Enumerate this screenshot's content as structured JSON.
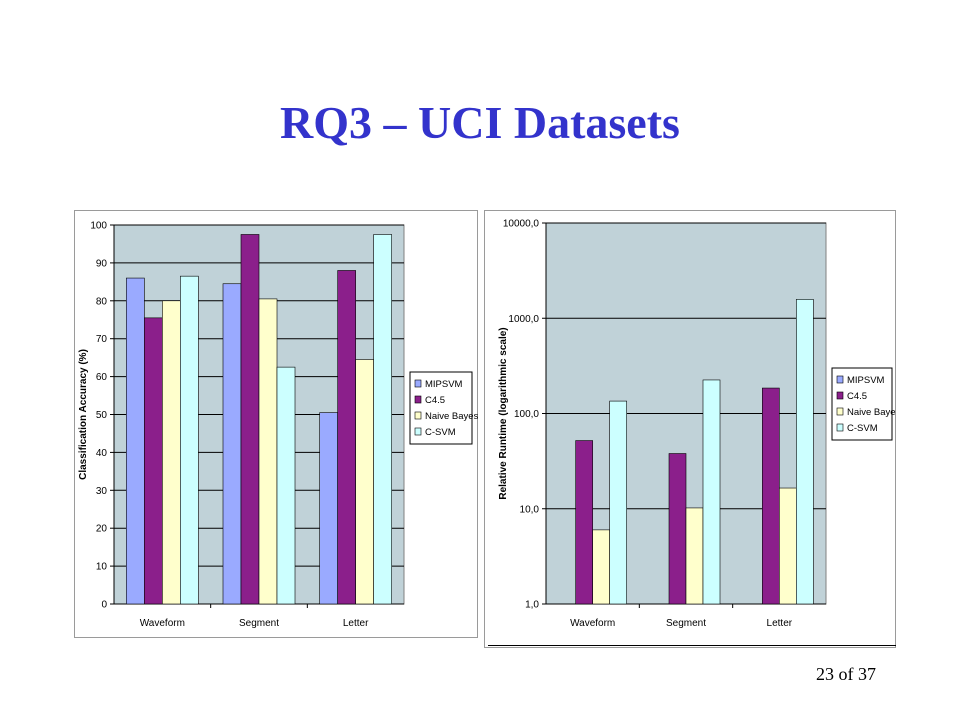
{
  "slide": {
    "title": "RQ3 – UCI Datasets",
    "page_number": "23 of 37"
  },
  "chart_data": [
    {
      "type": "bar",
      "categories": [
        "Waveform",
        "Segment",
        "Letter"
      ],
      "series": [
        {
          "name": "MIPSVM",
          "color": "#9aaaff",
          "values": [
            86,
            84.5,
            50.5
          ]
        },
        {
          "name": "C4.5",
          "color": "#8b1f8b",
          "values": [
            75.5,
            97.5,
            88
          ]
        },
        {
          "name": "Naive Bayes",
          "color": "#ffffcc",
          "values": [
            80,
            80.5,
            64.5
          ]
        },
        {
          "name": "C-SVM",
          "color": "#ccffff",
          "values": [
            86.5,
            62.5,
            97.5
          ]
        }
      ],
      "ylim": [
        0,
        100
      ],
      "yticks": [
        0,
        10,
        20,
        30,
        40,
        50,
        60,
        70,
        80,
        90,
        100
      ],
      "ytick_labels": [
        "0",
        "10",
        "20",
        "30",
        "40",
        "50",
        "60",
        "70",
        "80",
        "90",
        "100"
      ],
      "ylabel": "Classification Accuracy (%)",
      "xlabel": "",
      "title": "",
      "grid": true,
      "legend": "right",
      "plot_bg": "#c0d2d8"
    },
    {
      "type": "bar",
      "categories": [
        "Waveform",
        "Segment",
        "Letter"
      ],
      "series": [
        {
          "name": "MIPSVM",
          "color": "#9aaaff",
          "values": [
            null,
            null,
            null
          ]
        },
        {
          "name": "C4.5",
          "color": "#8b1f8b",
          "values": [
            52,
            38,
            185
          ]
        },
        {
          "name": "Naive Bayes",
          "color": "#ffffcc",
          "values": [
            6,
            10.2,
            16.5
          ]
        },
        {
          "name": "C-SVM",
          "color": "#ccffff",
          "values": [
            135,
            225,
            1580
          ]
        }
      ],
      "yscale": "log",
      "ylim": [
        1,
        10000
      ],
      "yticks": [
        1,
        10,
        100,
        1000,
        10000
      ],
      "ytick_labels": [
        "1,0",
        "10,0",
        "100,0",
        "1000,0",
        "10000,0"
      ],
      "ylabel": "Relative Runtime (logarithmic scale)",
      "xlabel": "",
      "title": "",
      "grid": true,
      "legend": "right",
      "plot_bg": "#c0d2d8"
    }
  ]
}
